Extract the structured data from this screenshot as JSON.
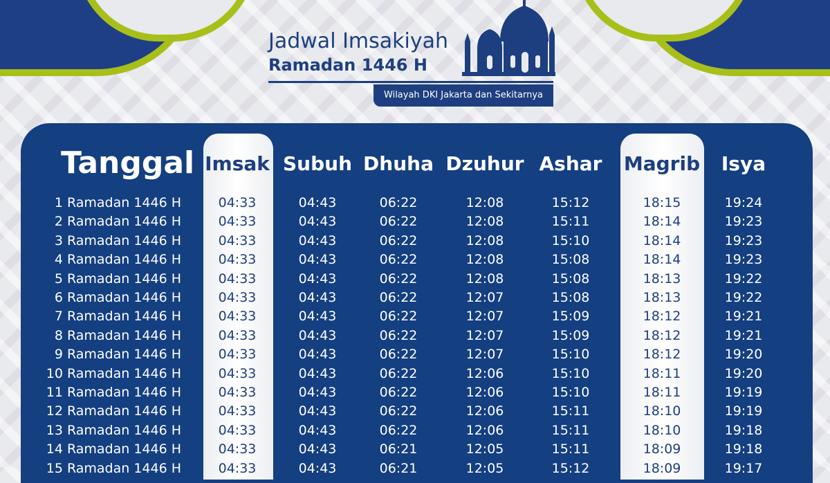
{
  "header": {
    "title": "Jadwal Imsakiyah",
    "subtitle": "Ramadan 1446 H",
    "region": "Wilayah DKI Jakarta dan Sekitarnya"
  },
  "columns": [
    "Tanggal",
    "Imsak",
    "Subuh",
    "Dhuha",
    "Dzuhur",
    "Ashar",
    "Magrib",
    "Isya"
  ],
  "colors": {
    "primary": "#143f80",
    "accent": "#a8bf1a",
    "highlight": "#ffffff"
  },
  "rows": [
    [
      "1 Ramadan 1446 H",
      "04:33",
      "04:43",
      "06:22",
      "12:08",
      "15:12",
      "18:15",
      "19:24"
    ],
    [
      "2 Ramadan 1446 H",
      "04:33",
      "04:43",
      "06:22",
      "12:08",
      "15:11",
      "18:14",
      "19:23"
    ],
    [
      "3 Ramadan 1446 H",
      "04:33",
      "04:43",
      "06:22",
      "12:08",
      "15:10",
      "18:14",
      "19:23"
    ],
    [
      "4 Ramadan 1446 H",
      "04:33",
      "04:43",
      "06:22",
      "12:08",
      "15:08",
      "18:14",
      "19:23"
    ],
    [
      "5 Ramadan 1446 H",
      "04:33",
      "04:43",
      "06:22",
      "12:08",
      "15:08",
      "18:13",
      "19:22"
    ],
    [
      "6 Ramadan 1446 H",
      "04:33",
      "04:43",
      "06:22",
      "12:07",
      "15:08",
      "18:13",
      "19:22"
    ],
    [
      "7 Ramadan 1446 H",
      "04:33",
      "04:43",
      "06:22",
      "12:07",
      "15:09",
      "18:12",
      "19:21"
    ],
    [
      "8 Ramadan 1446 H",
      "04:33",
      "04:43",
      "06:22",
      "12:07",
      "15:09",
      "18:12",
      "19:21"
    ],
    [
      "9 Ramadan 1446 H",
      "04:33",
      "04:43",
      "06:22",
      "12:07",
      "15:10",
      "18:12",
      "19:20"
    ],
    [
      "10 Ramadan 1446 H",
      "04:33",
      "04:43",
      "06:22",
      "12:06",
      "15:10",
      "18:11",
      "19:20"
    ],
    [
      "11 Ramadan 1446 H",
      "04:33",
      "04:43",
      "06:22",
      "12:06",
      "15:10",
      "18:11",
      "19:19"
    ],
    [
      "12 Ramadan 1446 H",
      "04:33",
      "04:43",
      "06:22",
      "12:06",
      "15:11",
      "18:10",
      "19:19"
    ],
    [
      "13 Ramadan 1446 H",
      "04:33",
      "04:43",
      "06:22",
      "12:06",
      "15:11",
      "18:10",
      "19:18"
    ],
    [
      "14 Ramadan 1446 H",
      "04:33",
      "04:43",
      "06:21",
      "12:05",
      "15:11",
      "18:09",
      "19:18"
    ],
    [
      "15 Ramadan 1446 H",
      "04:33",
      "04:43",
      "06:21",
      "12:05",
      "15:12",
      "18:09",
      "19:17"
    ]
  ]
}
